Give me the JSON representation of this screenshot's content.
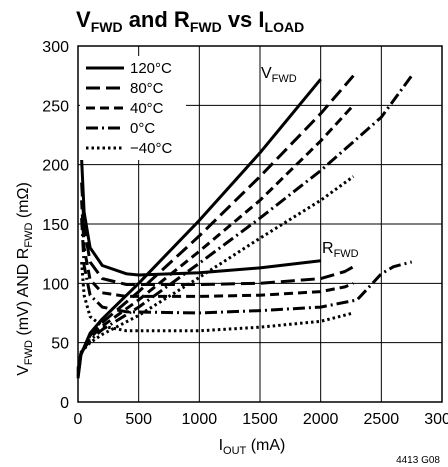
{
  "chart_data": {
    "type": "line",
    "title": {
      "prefix": "V",
      "sub1": "FWD",
      "mid": " and R",
      "sub2": "FWD",
      "mid2": " vs I",
      "sub3": "LOAD"
    },
    "xlabel": {
      "prefix": "I",
      "sub": "OUT",
      "suffix": " (mA)"
    },
    "ylabel": {
      "prefix": "V",
      "sub1": "FWD",
      "mid": " (mV) AND R",
      "sub2": "FWD",
      "suffix": " (mΩ)"
    },
    "xlim": [
      0,
      3000
    ],
    "ylim": [
      0,
      300
    ],
    "xticks": [
      "0",
      "500",
      "1000",
      "1500",
      "2000",
      "2500",
      "3000"
    ],
    "yticks": [
      "0",
      "50",
      "100",
      "150",
      "200",
      "250",
      "300"
    ],
    "grid": true,
    "legend_position": "top-left",
    "annotations": [
      {
        "prefix": "V",
        "sub": "FWD"
      },
      {
        "prefix": "R",
        "sub": "FWD"
      }
    ],
    "figure_code": "4413 G08",
    "series": [
      {
        "name": "120°C",
        "dash": "solid",
        "vfwd": [
          [
            0,
            20
          ],
          [
            25,
            40
          ],
          [
            100,
            58
          ],
          [
            200,
            70
          ],
          [
            500,
            100
          ],
          [
            1000,
            153
          ],
          [
            1500,
            210
          ],
          [
            2000,
            272
          ]
        ],
        "rfwd": [
          [
            30,
            205
          ],
          [
            50,
            160
          ],
          [
            100,
            130
          ],
          [
            200,
            115
          ],
          [
            400,
            108
          ],
          [
            500,
            107
          ],
          [
            1000,
            109
          ],
          [
            1500,
            113
          ],
          [
            2000,
            119
          ]
        ]
      },
      {
        "name": "80°C",
        "dash": "longdash",
        "vfwd": [
          [
            0,
            22
          ],
          [
            25,
            40
          ],
          [
            100,
            56
          ],
          [
            200,
            67
          ],
          [
            500,
            93
          ],
          [
            1000,
            140
          ],
          [
            1500,
            190
          ],
          [
            2000,
            243
          ],
          [
            2270,
            275
          ]
        ],
        "rfwd": [
          [
            30,
            185
          ],
          [
            50,
            148
          ],
          [
            100,
            118
          ],
          [
            200,
            104
          ],
          [
            400,
            99
          ],
          [
            1000,
            99
          ],
          [
            1500,
            100
          ],
          [
            2000,
            104
          ],
          [
            2200,
            110
          ],
          [
            2270,
            114
          ]
        ]
      },
      {
        "name": "40°C",
        "dash": "dash",
        "vfwd": [
          [
            0,
            24
          ],
          [
            25,
            41
          ],
          [
            100,
            54
          ],
          [
            200,
            64
          ],
          [
            500,
            86
          ],
          [
            1000,
            127
          ],
          [
            1500,
            170
          ],
          [
            2000,
            220
          ],
          [
            2270,
            250
          ]
        ],
        "rfwd": [
          [
            30,
            170
          ],
          [
            50,
            130
          ],
          [
            100,
            103
          ],
          [
            200,
            92
          ],
          [
            400,
            89
          ],
          [
            1000,
            89
          ],
          [
            1500,
            90
          ],
          [
            2000,
            93
          ],
          [
            2200,
            97
          ],
          [
            2270,
            100
          ]
        ]
      },
      {
        "name": "0°C",
        "dash": "dashdot",
        "vfwd": [
          [
            0,
            26
          ],
          [
            25,
            42
          ],
          [
            100,
            52
          ],
          [
            200,
            61
          ],
          [
            500,
            80
          ],
          [
            1000,
            117
          ],
          [
            1500,
            155
          ],
          [
            2000,
            195
          ],
          [
            2500,
            240
          ],
          [
            2750,
            275
          ]
        ],
        "rfwd": [
          [
            30,
            155
          ],
          [
            50,
            115
          ],
          [
            100,
            90
          ],
          [
            200,
            80
          ],
          [
            400,
            76
          ],
          [
            1000,
            75
          ],
          [
            1500,
            77
          ],
          [
            2000,
            80
          ],
          [
            2300,
            86
          ],
          [
            2400,
            97
          ],
          [
            2500,
            108
          ],
          [
            2600,
            114
          ],
          [
            2750,
            118
          ]
        ]
      },
      {
        "name": "−40°C",
        "dash": "dot",
        "vfwd": [
          [
            0,
            28
          ],
          [
            25,
            42
          ],
          [
            100,
            50
          ],
          [
            200,
            57
          ],
          [
            500,
            73
          ],
          [
            1000,
            105
          ],
          [
            1500,
            138
          ],
          [
            2000,
            170
          ],
          [
            2270,
            190
          ]
        ],
        "rfwd": [
          [
            30,
            118
          ],
          [
            50,
            90
          ],
          [
            100,
            72
          ],
          [
            200,
            64
          ],
          [
            400,
            60
          ],
          [
            1000,
            60
          ],
          [
            1500,
            63
          ],
          [
            2000,
            68
          ],
          [
            2270,
            75
          ]
        ]
      }
    ]
  }
}
